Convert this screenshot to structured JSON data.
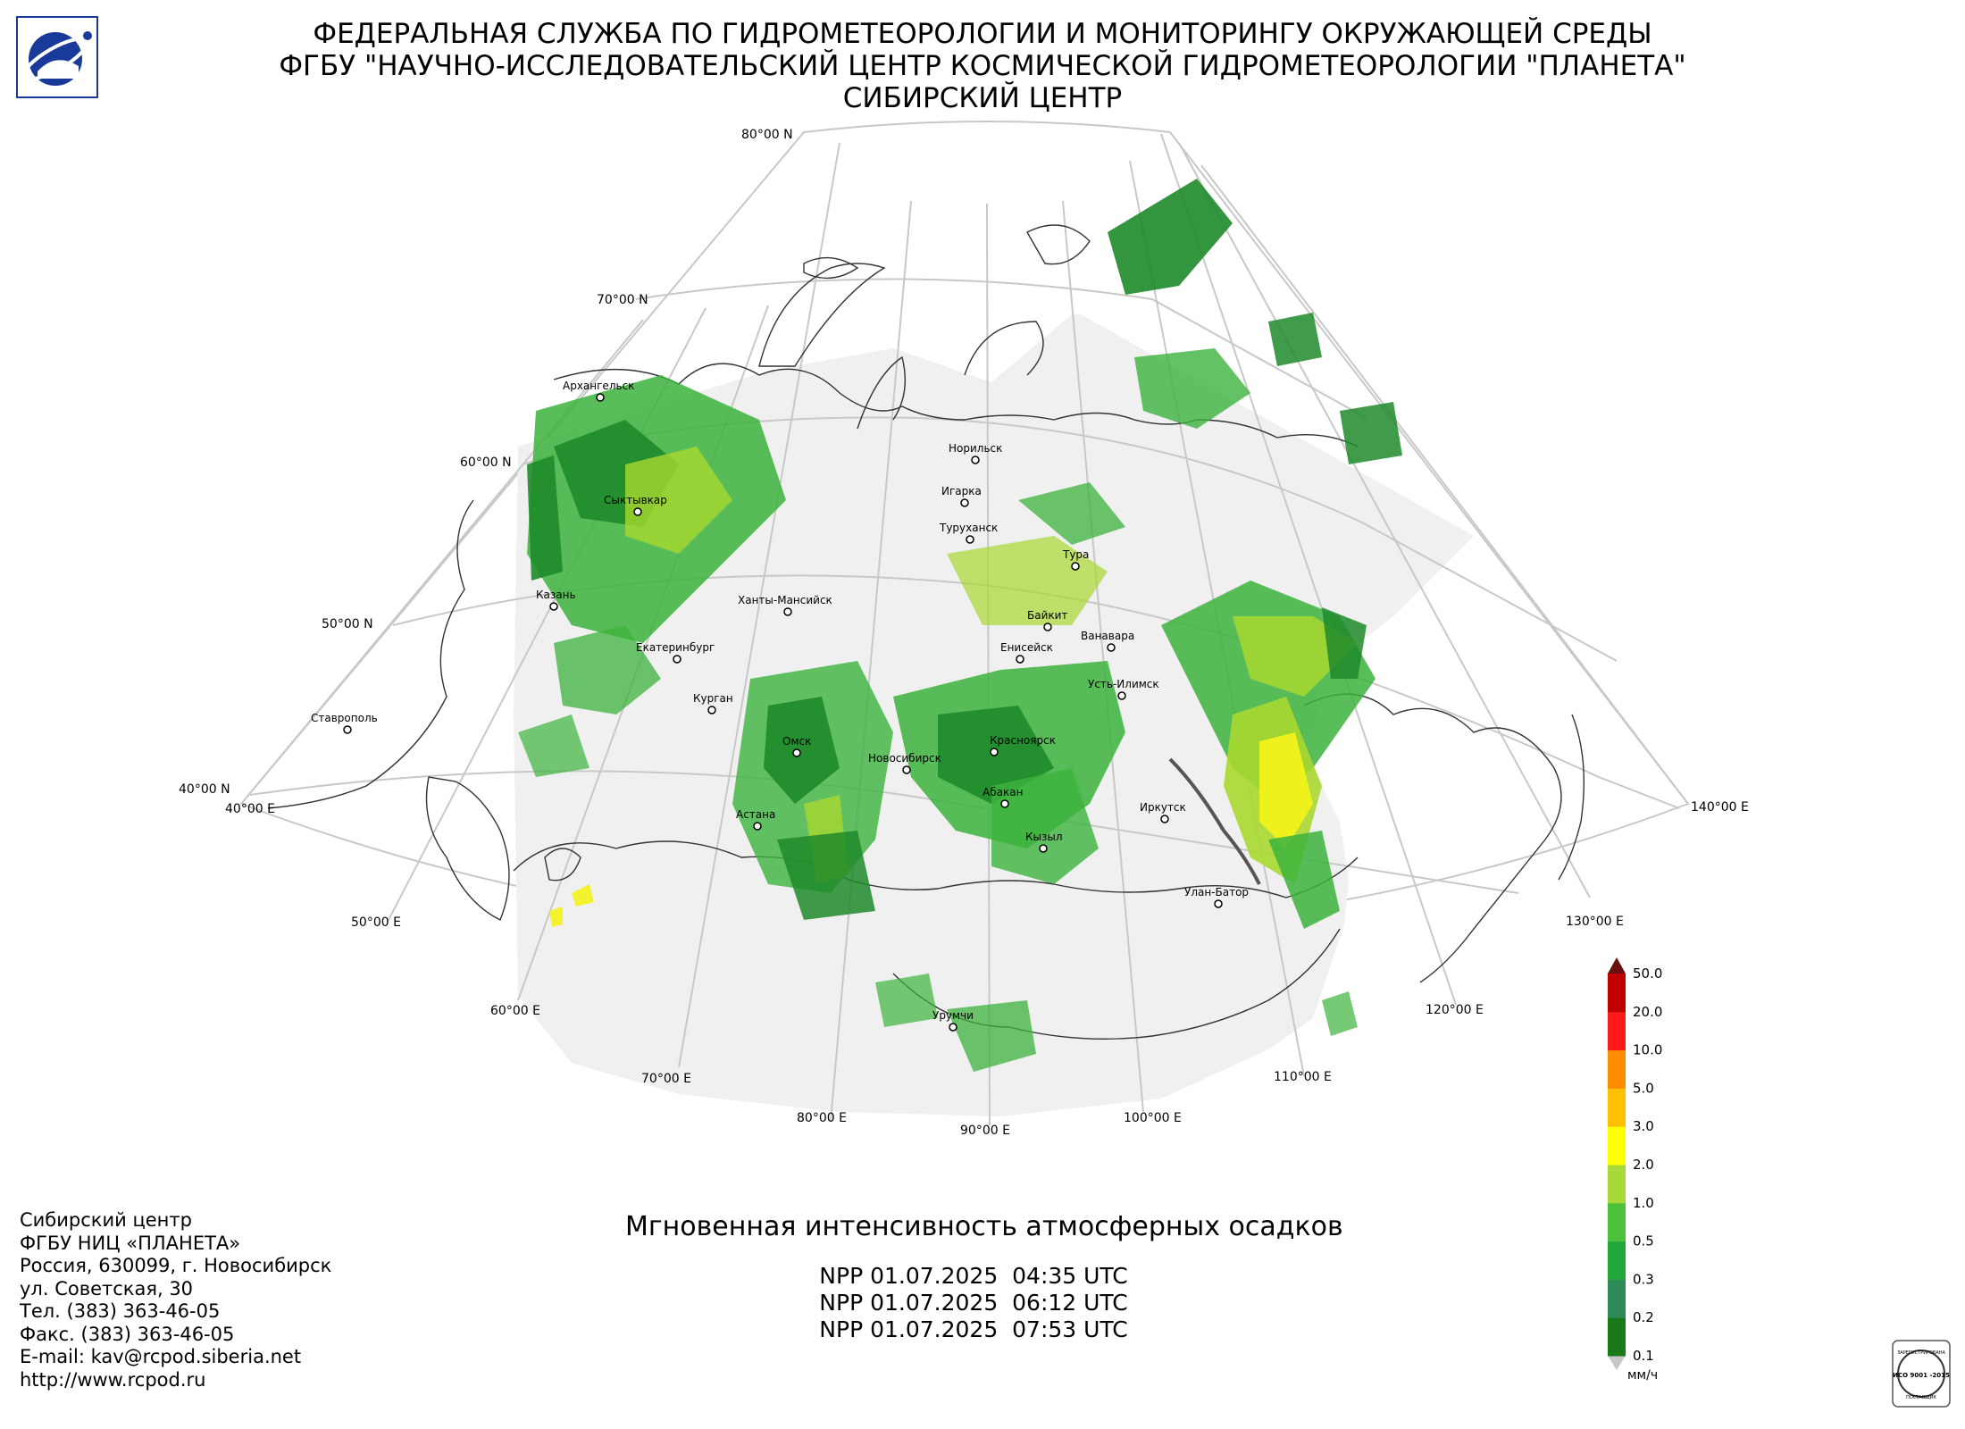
{
  "header": {
    "line1": "ФЕДЕРАЛЬНАЯ СЛУЖБА ПО ГИДРОМЕТЕОРОЛОГИИ И МОНИТОРИНГУ ОКРУЖАЮЩЕЙ СРЕДЫ",
    "line2": "ФГБУ \"НАУЧНО-ИССЛЕДОВАТЕЛЬСКИЙ ЦЕНТР КОСМИЧЕСКОЙ ГИДРОМЕТЕОРОЛОГИИ \"ПЛАНЕТА\"",
    "line3": "СИБИРСКИЙ ЦЕНТР"
  },
  "graticule": {
    "lat_labels": [
      "80°00 N",
      "70°00 N",
      "60°00 N",
      "50°00 N",
      "40°00 N"
    ],
    "lon_labels": [
      "40°00 E",
      "50°00 E",
      "60°00 E",
      "70°00 E",
      "80°00 E",
      "90°00 E",
      "100°00 E",
      "110°00 E",
      "120°00 E",
      "130°00 E",
      "140°00 E"
    ]
  },
  "cities": [
    {
      "name": "Архангельск"
    },
    {
      "name": "Норильск"
    },
    {
      "name": "Сыктывкар"
    },
    {
      "name": "Игарка"
    },
    {
      "name": "Туруханск"
    },
    {
      "name": "Тура"
    },
    {
      "name": "Казань"
    },
    {
      "name": "Ханты-Мансийск"
    },
    {
      "name": "Байкит"
    },
    {
      "name": "Ванавара"
    },
    {
      "name": "Екатеринбург"
    },
    {
      "name": "Енисейск"
    },
    {
      "name": "Усть-Илимск"
    },
    {
      "name": "Курган"
    },
    {
      "name": "Ставрополь"
    },
    {
      "name": "Омск"
    },
    {
      "name": "Новосибирск"
    },
    {
      "name": "Красноярск"
    },
    {
      "name": "Абакан"
    },
    {
      "name": "Иркутск"
    },
    {
      "name": "Астана"
    },
    {
      "name": "Кызыл"
    },
    {
      "name": "Улан-Батор"
    },
    {
      "name": "Урумчи"
    }
  ],
  "product": {
    "title": "Мгновенная интенсивность атмосферных осадков",
    "passes": [
      "NPP 01.07.2025  04:35 UTC",
      "NPP 01.07.2025  06:12 UTC",
      "NPP 01.07.2025  07:53 UTC"
    ]
  },
  "contacts": [
    "Сибирский центр",
    "ФГБУ НИЦ «ПЛАНЕТА»",
    "Россия, 630099, г. Новосибирск",
    "ул. Советская, 30",
    "Тел. (383) 363-46-05",
    "Факс. (383) 363-46-05",
    "E-mail: kav@rcpod.siberia.net",
    "http://www.rcpod.ru"
  ],
  "legend": {
    "unit": "мм/ч",
    "levels": [
      "0.1",
      "0.2",
      "0.3",
      "0.5",
      "1.0",
      "2.0",
      "3.0",
      "5.0",
      "10.0",
      "20.0",
      "50.0"
    ],
    "colors": [
      "#1a7a1a",
      "#2e8b57",
      "#22a83a",
      "#4cc23a",
      "#a8d83a",
      "#ffff00",
      "#ffc000",
      "#ff8c00",
      "#ff1a1a",
      "#c00000",
      "#6b1010"
    ],
    "under_color": "#c8c8c8",
    "over_color": "#6b1010"
  },
  "iso_badge": {
    "top": "ЗАРЕГИСТРИРОВАНА",
    "code": "ИСО 9001 -2015",
    "bottom": "ПОСТАВЩИК"
  },
  "palette": {
    "swath": "#f0f0f0",
    "grid": "#c8c8c8",
    "coast": "#333333",
    "precip_dark": "#1e8a2a",
    "precip_mid": "#3cb33c",
    "precip_light": "#a8d830",
    "precip_yellow": "#f2f21a"
  }
}
